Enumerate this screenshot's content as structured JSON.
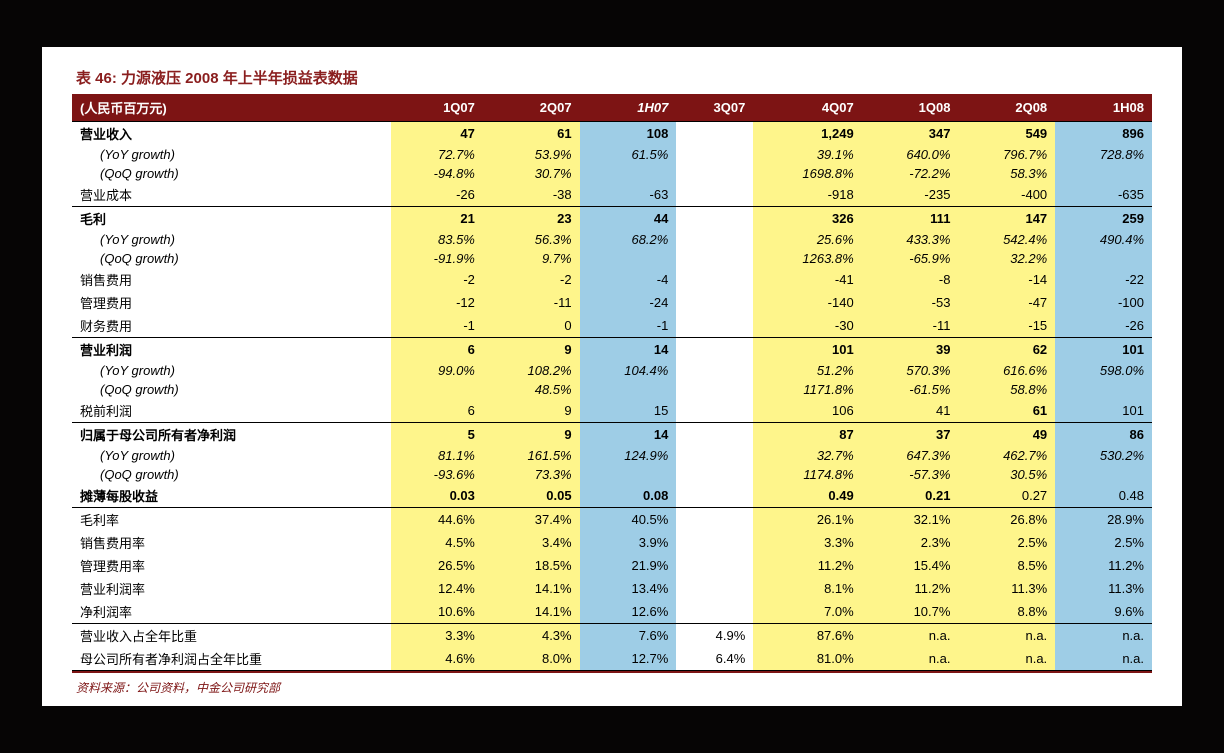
{
  "title": "表 46:  力源液压 2008 年上半年损益表数据",
  "footer": "资料来源：公司资料，中金公司研究部",
  "headers": [
    "(人民币百万元)",
    "1Q07",
    "2Q07",
    "1H07",
    "3Q07",
    "4Q07",
    "1Q08",
    "2Q08",
    "1H08"
  ],
  "colColors": [
    "",
    "yellow",
    "yellow",
    "blue",
    "white",
    "yellow",
    "yellow",
    "yellow",
    "blue"
  ],
  "rows": [
    {
      "sep": "topBold",
      "bold": true,
      "label": "营业收入",
      "c": [
        "47",
        "61",
        "108",
        "",
        "1,249",
        "347",
        "549",
        "896"
      ]
    },
    {
      "italic": true,
      "indent": true,
      "label": "(YoY growth)",
      "c": [
        "72.7%",
        "53.9%",
        "61.5%",
        "",
        "39.1%",
        "640.0%",
        "796.7%",
        "728.8%"
      ]
    },
    {
      "italic": true,
      "indent": true,
      "label": "(QoQ growth)",
      "c": [
        "-94.8%",
        "30.7%",
        "",
        "",
        "1698.8%",
        "-72.2%",
        "58.3%",
        ""
      ]
    },
    {
      "label": "营业成本",
      "c": [
        "-26",
        "-38",
        "-63",
        "",
        "-918",
        "-235",
        "-400",
        "-635"
      ]
    },
    {
      "sep": "topThin",
      "bold": true,
      "label": "毛利",
      "c": [
        "21",
        "23",
        "44",
        "",
        "326",
        "111",
        "147",
        "259"
      ]
    },
    {
      "italic": true,
      "indent": true,
      "label": "(YoY growth)",
      "c": [
        "83.5%",
        "56.3%",
        "68.2%",
        "",
        "25.6%",
        "433.3%",
        "542.4%",
        "490.4%"
      ]
    },
    {
      "italic": true,
      "indent": true,
      "label": "(QoQ growth)",
      "c": [
        "-91.9%",
        "9.7%",
        "",
        "",
        "1263.8%",
        "-65.9%",
        "32.2%",
        ""
      ]
    },
    {
      "label": "销售费用",
      "c": [
        "-2",
        "-2",
        "-4",
        "",
        "-41",
        "-8",
        "-14",
        "-22"
      ]
    },
    {
      "label": "管理费用",
      "c": [
        "-12",
        "-11",
        "-24",
        "",
        "-140",
        "-53",
        "-47",
        "-100"
      ]
    },
    {
      "label": "财务费用",
      "c": [
        "-1",
        "0",
        "-1",
        "",
        "-30",
        "-11",
        "-15",
        "-26"
      ]
    },
    {
      "sep": "topThin",
      "bold": true,
      "label": "营业利润",
      "c": [
        "6",
        "9",
        "14",
        "",
        "101",
        "39",
        "62",
        "101"
      ]
    },
    {
      "italic": true,
      "indent": true,
      "label": "(YoY growth)",
      "c": [
        "99.0%",
        "108.2%",
        "104.4%",
        "",
        "51.2%",
        "570.3%",
        "616.6%",
        "598.0%"
      ]
    },
    {
      "italic": true,
      "indent": true,
      "label": "(QoQ growth)",
      "c": [
        "",
        "48.5%",
        "",
        "",
        "1171.8%",
        "-61.5%",
        "58.8%",
        ""
      ]
    },
    {
      "label": "税前利润",
      "c": [
        "6",
        "9",
        "15",
        "",
        "106",
        "41",
        "61",
        "101"
      ],
      "cellBold": [
        false,
        false,
        false,
        false,
        false,
        false,
        true,
        false
      ]
    },
    {
      "sep": "topThin",
      "bold": true,
      "label": "归属于母公司所有者净利润",
      "c": [
        "5",
        "9",
        "14",
        "",
        "87",
        "37",
        "49",
        "86"
      ]
    },
    {
      "italic": true,
      "indent": true,
      "label": "(YoY growth)",
      "c": [
        "81.1%",
        "161.5%",
        "124.9%",
        "",
        "32.7%",
        "647.3%",
        "462.7%",
        "530.2%"
      ]
    },
    {
      "italic": true,
      "indent": true,
      "label": "(QoQ growth)",
      "c": [
        "-93.6%",
        "73.3%",
        "",
        "",
        "1174.8%",
        "-57.3%",
        "30.5%",
        ""
      ]
    },
    {
      "bold": true,
      "label": "摊薄每股收益",
      "c": [
        "0.03",
        "0.05",
        "0.08",
        "",
        "0.49",
        "0.21",
        "0.27",
        "0.48"
      ],
      "cellBold": [
        true,
        true,
        true,
        false,
        true,
        true,
        false,
        false
      ]
    },
    {
      "sep": "topThin",
      "label": "毛利率",
      "c": [
        "44.6%",
        "37.4%",
        "40.5%",
        "",
        "26.1%",
        "32.1%",
        "26.8%",
        "28.9%"
      ]
    },
    {
      "label": "销售费用率",
      "c": [
        "4.5%",
        "3.4%",
        "3.9%",
        "",
        "3.3%",
        "2.3%",
        "2.5%",
        "2.5%"
      ]
    },
    {
      "label": "管理费用率",
      "c": [
        "26.5%",
        "18.5%",
        "21.9%",
        "",
        "11.2%",
        "15.4%",
        "8.5%",
        "11.2%"
      ]
    },
    {
      "label": "营业利润率",
      "c": [
        "12.4%",
        "14.1%",
        "13.4%",
        "",
        "8.1%",
        "11.2%",
        "11.3%",
        "11.3%"
      ]
    },
    {
      "label": "净利润率",
      "c": [
        "10.6%",
        "14.1%",
        "12.6%",
        "",
        "7.0%",
        "10.7%",
        "8.8%",
        "9.6%"
      ]
    },
    {
      "sep": "topThin",
      "label": "营业收入占全年比重",
      "c": [
        "3.3%",
        "4.3%",
        "7.6%",
        "4.9%",
        "87.6%",
        "n.a.",
        "n.a.",
        "n.a."
      ]
    },
    {
      "sep": "botBold",
      "label": "母公司所有者净利润占全年比重",
      "c": [
        "4.6%",
        "8.0%",
        "12.7%",
        "6.4%",
        "81.0%",
        "n.a.",
        "n.a.",
        "n.a."
      ]
    }
  ]
}
